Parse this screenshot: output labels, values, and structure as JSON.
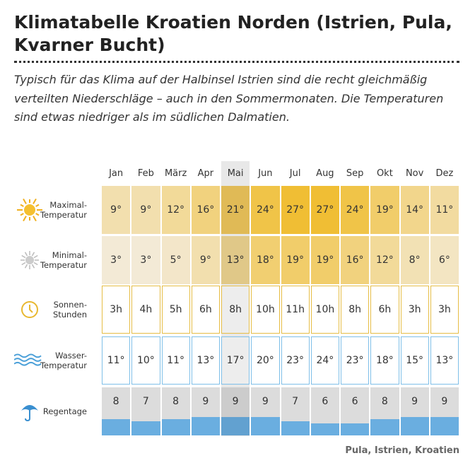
{
  "header": {
    "title": "Klimatabelle Kroatien Norden (Istrien, Pula, Kvarner Bucht)",
    "intro": "Typisch für das Klima auf der Halbinsel Istrien sind die recht gleichmäßig verteilten Niederschläge – auch in den Sommermonaten. Die Temperaturen sind etwas niedriger als im südlichen Dalmatien."
  },
  "table": {
    "months": [
      "Jan",
      "Feb",
      "März",
      "Apr",
      "Mai",
      "Jun",
      "Jul",
      "Aug",
      "Sep",
      "Okt",
      "Nov",
      "Dez"
    ],
    "rows": [
      {
        "label": [
          "Maximal-",
          "Temperatur"
        ],
        "values": [
          "9°",
          "9°",
          "12°",
          "16°",
          "21°",
          "24°",
          "27°",
          "27°",
          "24°",
          "19°",
          "14°",
          "11°"
        ]
      },
      {
        "label": [
          "Minimal-",
          "Temperatur"
        ],
        "values": [
          "3°",
          "3°",
          "5°",
          "9°",
          "13°",
          "18°",
          "19°",
          "19°",
          "16°",
          "12°",
          "8°",
          "6°"
        ]
      },
      {
        "label": [
          "Sonnen-",
          "Stunden"
        ],
        "values": [
          "3h",
          "4h",
          "5h",
          "6h",
          "8h",
          "10h",
          "11h",
          "10h",
          "8h",
          "6h",
          "3h",
          "3h"
        ]
      },
      {
        "label": [
          "Wasser-",
          "Temperatur"
        ],
        "values": [
          "11°",
          "10°",
          "11°",
          "13°",
          "17°",
          "20°",
          "23°",
          "24°",
          "23°",
          "18°",
          "15°",
          "13°"
        ]
      },
      {
        "label": [
          "Regentage"
        ],
        "values": [
          8,
          7,
          8,
          9,
          9,
          9,
          7,
          6,
          6,
          8,
          9,
          9
        ]
      }
    ]
  },
  "footer": {
    "source": "Pula, Istrien, Kroatien"
  }
}
